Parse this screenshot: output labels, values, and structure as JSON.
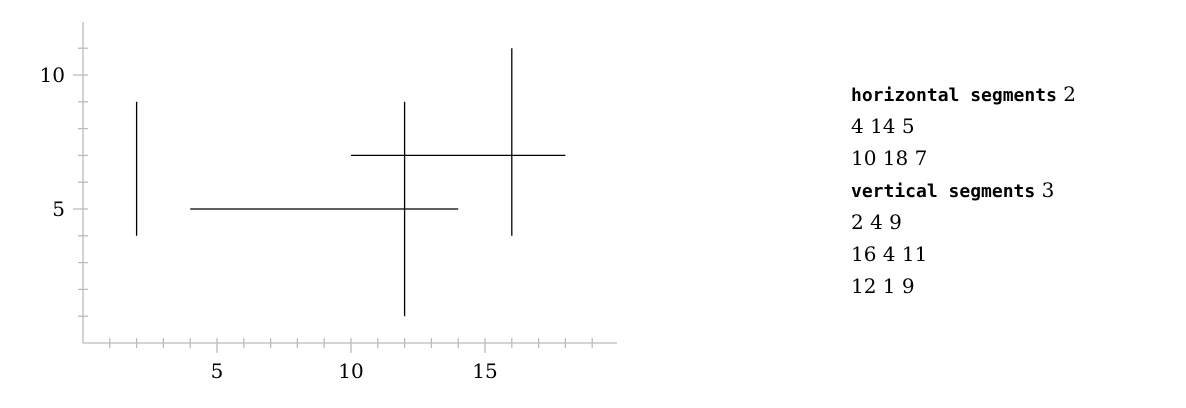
{
  "chart_data": {
    "type": "line",
    "x_ticks": [
      5,
      10,
      15
    ],
    "y_ticks": [
      5,
      10
    ],
    "xlim": [
      0,
      20
    ],
    "ylim": [
      0,
      12
    ],
    "horizontal_segments": [
      {
        "y": 5,
        "x1": 4,
        "x2": 14
      },
      {
        "y": 7,
        "x1": 10,
        "x2": 18
      }
    ],
    "vertical_segments": [
      {
        "x": 2,
        "y1": 4,
        "y2": 9
      },
      {
        "x": 16,
        "y1": 4,
        "y2": 11
      },
      {
        "x": 12,
        "y1": 1,
        "y2": 9
      }
    ],
    "axis_color": "#bbbbbb",
    "segment_color": "#000000"
  },
  "listing": {
    "horizontal_header": "horizontal segments",
    "horizontal_count": "2",
    "horizontal_rows": [
      "4 14 5",
      "10 18 7"
    ],
    "vertical_header": "vertical segments",
    "vertical_count": "3",
    "vertical_rows": [
      "2 4 9",
      "16 4 11",
      "12 1 9"
    ]
  }
}
